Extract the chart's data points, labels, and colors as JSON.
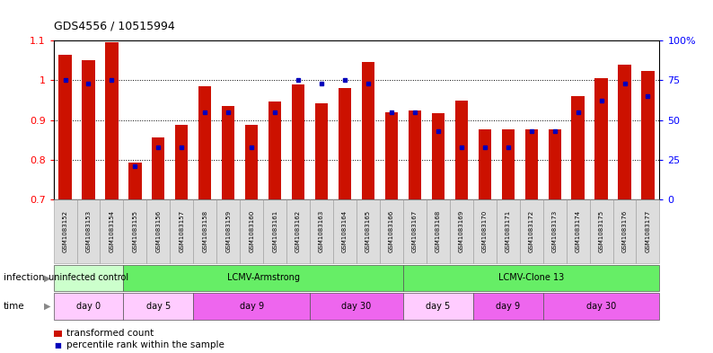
{
  "title": "GDS4556 / 10515994",
  "samples": [
    "GSM1083152",
    "GSM1083153",
    "GSM1083154",
    "GSM1083155",
    "GSM1083156",
    "GSM1083157",
    "GSM1083158",
    "GSM1083159",
    "GSM1083160",
    "GSM1083161",
    "GSM1083162",
    "GSM1083163",
    "GSM1083164",
    "GSM1083165",
    "GSM1083166",
    "GSM1083167",
    "GSM1083168",
    "GSM1083169",
    "GSM1083170",
    "GSM1083171",
    "GSM1083172",
    "GSM1083173",
    "GSM1083174",
    "GSM1083175",
    "GSM1083176",
    "GSM1083177"
  ],
  "bar_heights": [
    1.065,
    1.05,
    1.095,
    0.793,
    0.857,
    0.888,
    0.985,
    0.935,
    0.888,
    0.947,
    0.99,
    0.943,
    0.98,
    1.047,
    0.92,
    0.924,
    0.918,
    0.95,
    0.877,
    0.877,
    0.877,
    0.877,
    0.96,
    1.005,
    1.04,
    1.023
  ],
  "blue_dot_pct": [
    75,
    73,
    75,
    21,
    33,
    33,
    55,
    55,
    33,
    55,
    75,
    73,
    75,
    73,
    55,
    55,
    43,
    33,
    33,
    33,
    43,
    43,
    55,
    62,
    73,
    65
  ],
  "ylim_left": [
    0.7,
    1.1
  ],
  "ylim_right": [
    0,
    100
  ],
  "bar_color": "#cc1100",
  "dot_color": "#0000bb",
  "background_color": "#ffffff",
  "infection_groups": [
    {
      "label": "uninfected control",
      "start": 0,
      "end": 3,
      "color": "#ccffcc"
    },
    {
      "label": "LCMV-Armstrong",
      "start": 3,
      "end": 15,
      "color": "#66ee66"
    },
    {
      "label": "LCMV-Clone 13",
      "start": 15,
      "end": 26,
      "color": "#66ee66"
    }
  ],
  "time_groups": [
    {
      "label": "day 0",
      "start": 0,
      "end": 3,
      "color": "#ffccff"
    },
    {
      "label": "day 5",
      "start": 3,
      "end": 6,
      "color": "#ffccff"
    },
    {
      "label": "day 9",
      "start": 6,
      "end": 11,
      "color": "#ee66ee"
    },
    {
      "label": "day 30",
      "start": 11,
      "end": 15,
      "color": "#ee66ee"
    },
    {
      "label": "day 5",
      "start": 15,
      "end": 18,
      "color": "#ffccff"
    },
    {
      "label": "day 9",
      "start": 18,
      "end": 21,
      "color": "#ee66ee"
    },
    {
      "label": "day 30",
      "start": 21,
      "end": 26,
      "color": "#ee66ee"
    }
  ],
  "xlabel_bg": "#dddddd"
}
